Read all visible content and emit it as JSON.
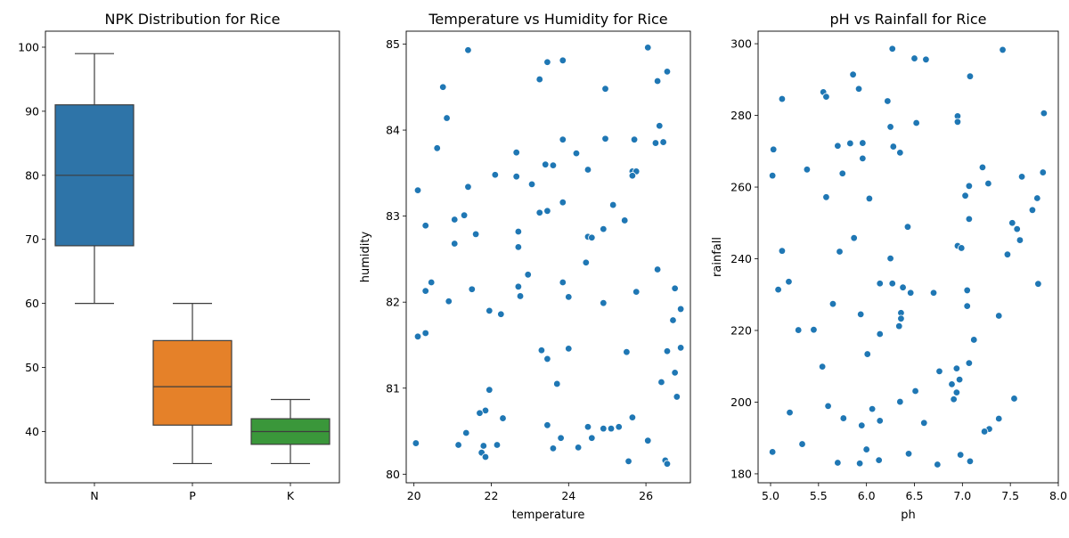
{
  "chart_data": [
    {
      "type": "box",
      "title": "NPK Distribution for Rice",
      "xlabel": "",
      "ylabel": "",
      "ylim": [
        32,
        102.5
      ],
      "yticks": [
        40,
        50,
        60,
        70,
        80,
        90,
        100
      ],
      "categories": [
        "N",
        "P",
        "K"
      ],
      "boxes": [
        {
          "name": "N",
          "min": 60,
          "q1": 69,
          "median": 80,
          "q3": 91,
          "max": 99,
          "color": "#2e74a8"
        },
        {
          "name": "P",
          "min": 35,
          "q1": 41,
          "median": 47,
          "q3": 54.2,
          "max": 60,
          "color": "#e58129"
        },
        {
          "name": "K",
          "min": 35,
          "q1": 38,
          "median": 40,
          "q3": 42,
          "max": 45,
          "color": "#3a973a"
        }
      ]
    },
    {
      "type": "scatter",
      "title": "Temperature vs Humidity for Rice",
      "xlabel": "temperature",
      "ylabel": "humidity",
      "xlim": [
        19.8,
        27.15
      ],
      "ylim": [
        79.9,
        85.15
      ],
      "xticks": [
        20,
        22,
        24,
        26
      ],
      "yticks": [
        80,
        81,
        82,
        83,
        84,
        85
      ],
      "color": "#1f77b4",
      "points": [
        [
          21.4,
          84.93
        ],
        [
          23.85,
          84.81
        ],
        [
          23.45,
          84.79
        ],
        [
          26.05,
          84.96
        ],
        [
          26.55,
          84.68
        ],
        [
          23.25,
          84.59
        ],
        [
          24.95,
          84.48
        ],
        [
          20.75,
          84.5
        ],
        [
          26.3,
          84.57
        ],
        [
          20.85,
          84.14
        ],
        [
          26.35,
          84.05
        ],
        [
          23.85,
          83.89
        ],
        [
          24.95,
          83.9
        ],
        [
          25.7,
          83.89
        ],
        [
          26.45,
          83.86
        ],
        [
          26.25,
          83.85
        ],
        [
          20.6,
          83.79
        ],
        [
          22.65,
          83.74
        ],
        [
          24.2,
          83.73
        ],
        [
          23.4,
          83.6
        ],
        [
          23.6,
          83.59
        ],
        [
          24.5,
          83.54
        ],
        [
          25.65,
          83.52
        ],
        [
          25.75,
          83.52
        ],
        [
          25.65,
          83.47
        ],
        [
          22.1,
          83.48
        ],
        [
          22.65,
          83.46
        ],
        [
          23.05,
          83.37
        ],
        [
          21.4,
          83.34
        ],
        [
          20.1,
          83.3
        ],
        [
          23.85,
          83.16
        ],
        [
          25.15,
          83.13
        ],
        [
          23.25,
          83.04
        ],
        [
          23.45,
          83.06
        ],
        [
          21.3,
          83.01
        ],
        [
          21.05,
          82.96
        ],
        [
          25.45,
          82.95
        ],
        [
          20.3,
          82.89
        ],
        [
          24.9,
          82.85
        ],
        [
          22.7,
          82.82
        ],
        [
          21.6,
          82.79
        ],
        [
          24.5,
          82.76
        ],
        [
          24.6,
          82.75
        ],
        [
          21.05,
          82.68
        ],
        [
          22.7,
          82.64
        ],
        [
          24.45,
          82.46
        ],
        [
          26.3,
          82.38
        ],
        [
          22.95,
          82.32
        ],
        [
          23.85,
          82.23
        ],
        [
          20.45,
          82.23
        ],
        [
          22.7,
          82.18
        ],
        [
          26.75,
          82.16
        ],
        [
          21.5,
          82.15
        ],
        [
          20.3,
          82.13
        ],
        [
          25.75,
          82.12
        ],
        [
          24.0,
          82.06
        ],
        [
          22.75,
          82.07
        ],
        [
          20.9,
          82.01
        ],
        [
          24.9,
          81.99
        ],
        [
          26.9,
          81.92
        ],
        [
          21.95,
          81.9
        ],
        [
          22.25,
          81.86
        ],
        [
          26.7,
          81.79
        ],
        [
          20.3,
          81.64
        ],
        [
          20.1,
          81.6
        ],
        [
          24.0,
          81.46
        ],
        [
          26.9,
          81.47
        ],
        [
          23.3,
          81.44
        ],
        [
          25.5,
          81.42
        ],
        [
          26.55,
          81.43
        ],
        [
          23.45,
          81.34
        ],
        [
          26.75,
          81.18
        ],
        [
          26.4,
          81.07
        ],
        [
          23.7,
          81.05
        ],
        [
          21.95,
          80.98
        ],
        [
          26.8,
          80.9
        ],
        [
          21.85,
          80.74
        ],
        [
          21.7,
          80.71
        ],
        [
          25.65,
          80.66
        ],
        [
          22.3,
          80.65
        ],
        [
          23.45,
          80.57
        ],
        [
          24.5,
          80.55
        ],
        [
          25.3,
          80.55
        ],
        [
          24.9,
          80.53
        ],
        [
          25.1,
          80.53
        ],
        [
          21.35,
          80.48
        ],
        [
          23.8,
          80.42
        ],
        [
          24.6,
          80.42
        ],
        [
          26.05,
          80.39
        ],
        [
          20.05,
          80.36
        ],
        [
          21.15,
          80.34
        ],
        [
          21.8,
          80.33
        ],
        [
          22.15,
          80.34
        ],
        [
          23.6,
          80.3
        ],
        [
          24.25,
          80.31
        ],
        [
          21.75,
          80.25
        ],
        [
          21.85,
          80.2
        ],
        [
          25.55,
          80.15
        ],
        [
          26.5,
          80.16
        ],
        [
          26.55,
          80.12
        ]
      ]
    },
    {
      "type": "scatter",
      "title": "pH vs Rainfall for Rice",
      "xlabel": "ph",
      "ylabel": "rainfall",
      "xlim": [
        4.87,
        8.0
      ],
      "ylim": [
        177.5,
        303.5
      ],
      "xticks": [
        5.0,
        5.5,
        6.0,
        6.5,
        7.0,
        7.5,
        8.0
      ],
      "yticks": [
        180,
        200,
        220,
        240,
        260,
        280,
        300
      ],
      "color": "#1f77b4",
      "points": [
        [
          6.27,
          298.6
        ],
        [
          7.42,
          298.3
        ],
        [
          6.5,
          295.9
        ],
        [
          6.62,
          295.6
        ],
        [
          5.86,
          291.4
        ],
        [
          7.08,
          290.9
        ],
        [
          5.92,
          287.4
        ],
        [
          5.55,
          286.5
        ],
        [
          5.58,
          285.2
        ],
        [
          5.12,
          284.6
        ],
        [
          6.22,
          284
        ],
        [
          7.85,
          280.6
        ],
        [
          6.95,
          279.8
        ],
        [
          6.95,
          278.2
        ],
        [
          6.52,
          277.9
        ],
        [
          6.25,
          276.8
        ],
        [
          5.83,
          272.2
        ],
        [
          5.96,
          272.3
        ],
        [
          5.7,
          271.5
        ],
        [
          6.28,
          271.3
        ],
        [
          5.03,
          270.5
        ],
        [
          6.35,
          269.6
        ],
        [
          5.96,
          268
        ],
        [
          7.21,
          265.5
        ],
        [
          5.38,
          264.9
        ],
        [
          7.84,
          264.1
        ],
        [
          5.75,
          263.8
        ],
        [
          5.02,
          263.2
        ],
        [
          7.62,
          262.9
        ],
        [
          7.27,
          261
        ],
        [
          7.07,
          260.3
        ],
        [
          7.03,
          257.6
        ],
        [
          5.58,
          257.2
        ],
        [
          6.03,
          256.8
        ],
        [
          7.78,
          256.9
        ],
        [
          7.73,
          253.6
        ],
        [
          7.07,
          251.1
        ],
        [
          7.52,
          250
        ],
        [
          7.57,
          248.3
        ],
        [
          6.43,
          248.9
        ],
        [
          5.87,
          245.8
        ],
        [
          7.6,
          245.2
        ],
        [
          6.95,
          243.6
        ],
        [
          6.99,
          243
        ],
        [
          5.12,
          242.2
        ],
        [
          5.72,
          242
        ],
        [
          7.47,
          241.2
        ],
        [
          6.25,
          240.1
        ],
        [
          5.19,
          233.6
        ],
        [
          6.14,
          233.1
        ],
        [
          6.27,
          233.1
        ],
        [
          7.79,
          233
        ],
        [
          6.38,
          232
        ],
        [
          5.08,
          231.4
        ],
        [
          7.05,
          231.2
        ],
        [
          6.46,
          230.5
        ],
        [
          6.7,
          230.5
        ],
        [
          5.65,
          227.4
        ],
        [
          7.05,
          226.8
        ],
        [
          6.36,
          224.9
        ],
        [
          5.94,
          224.5
        ],
        [
          7.38,
          224.1
        ],
        [
          6.36,
          223.3
        ],
        [
          6.34,
          221.2
        ],
        [
          5.29,
          220.1
        ],
        [
          5.45,
          220.2
        ],
        [
          6.14,
          219
        ],
        [
          7.12,
          217.4
        ],
        [
          6.01,
          213.4
        ],
        [
          5.54,
          209.9
        ],
        [
          7.07,
          210.9
        ],
        [
          6.94,
          209.4
        ],
        [
          6.76,
          208.6
        ],
        [
          6.97,
          206.3
        ],
        [
          6.89,
          205
        ],
        [
          6.51,
          203.1
        ],
        [
          6.94,
          202.7
        ],
        [
          7.54,
          201
        ],
        [
          6.91,
          200.8
        ],
        [
          6.35,
          200.1
        ],
        [
          5.6,
          198.9
        ],
        [
          6.06,
          198.1
        ],
        [
          5.2,
          197.1
        ],
        [
          5.76,
          195.5
        ],
        [
          7.38,
          195.4
        ],
        [
          6.14,
          194.8
        ],
        [
          6.6,
          194.2
        ],
        [
          5.95,
          193.5
        ],
        [
          7.28,
          192.5
        ],
        [
          7.23,
          191.8
        ],
        [
          5.33,
          188.3
        ],
        [
          6.0,
          186.8
        ],
        [
          5.02,
          186.1
        ],
        [
          6.44,
          185.6
        ],
        [
          6.98,
          185.3
        ],
        [
          6.13,
          183.8
        ],
        [
          7.08,
          183.5
        ],
        [
          5.7,
          183.1
        ],
        [
          5.93,
          182.9
        ],
        [
          6.74,
          182.6
        ]
      ]
    }
  ]
}
